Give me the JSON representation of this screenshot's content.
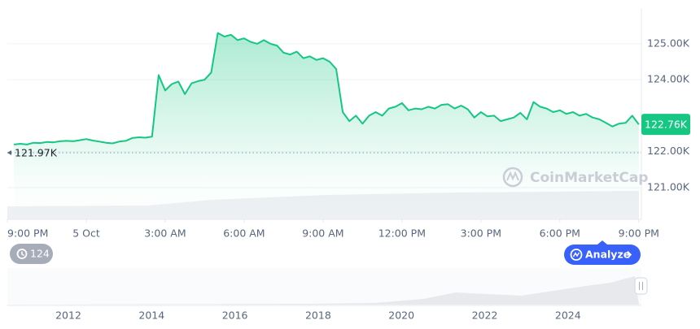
{
  "chart_data": {
    "type": "line",
    "x": [
      0.25,
      0.5,
      0.75,
      1,
      1.25,
      1.5,
      1.75,
      2,
      2.25,
      2.5,
      2.75,
      3,
      3.25,
      3.5,
      3.75,
      4,
      4.25,
      4.5,
      4.75,
      5,
      5.25,
      5.5,
      5.75,
      6,
      6.25,
      6.5,
      6.75,
      7,
      7.25,
      7.5,
      7.75,
      8,
      8.25,
      8.5,
      8.75,
      9,
      9.25,
      9.5,
      9.75,
      10,
      10.25,
      10.5,
      10.75,
      11,
      11.25,
      11.5,
      11.75,
      12,
      12.25,
      12.5,
      12.75,
      13,
      13.25,
      13.5,
      13.75,
      14,
      14.25,
      14.5,
      14.75,
      15,
      15.25,
      15.5,
      15.75,
      16,
      16.25,
      16.5,
      16.75,
      17,
      17.25,
      17.5,
      17.75,
      18,
      18.25,
      18.5,
      18.75,
      19,
      19.25,
      19.5,
      19.75,
      20,
      20.25,
      20.5,
      20.75,
      21,
      21.25,
      21.5,
      21.75,
      22,
      22.25,
      22.5,
      22.75,
      23,
      23.25,
      23.5,
      23.75,
      24
    ],
    "series": [
      {
        "color": "#16c784",
        "values": [
          122200,
          122220,
          122200,
          122250,
          122240,
          122270,
          122260,
          122290,
          122300,
          122290,
          122320,
          122350,
          122310,
          122280,
          122250,
          122230,
          122280,
          122300,
          122380,
          122400,
          122390,
          122420,
          124130,
          123700,
          123880,
          123950,
          123600,
          123900,
          123960,
          124000,
          124200,
          125300,
          125200,
          125250,
          125100,
          125150,
          125050,
          125000,
          125100,
          125000,
          124950,
          124750,
          124700,
          124780,
          124600,
          124650,
          124550,
          124600,
          124500,
          124300,
          123100,
          122850,
          123000,
          122780,
          123000,
          123100,
          123000,
          123200,
          123250,
          123350,
          123150,
          123200,
          123180,
          123250,
          123200,
          123300,
          123320,
          123200,
          123280,
          123180,
          122950,
          123100,
          122980,
          123000,
          122850,
          122900,
          122950,
          123080,
          122900,
          123380,
          123250,
          123200,
          123100,
          123150,
          123050,
          123100,
          123000,
          123050,
          122950,
          122900,
          122800,
          122700,
          122780,
          122800,
          123000,
          122760
        ]
      }
    ],
    "xlim": [
      0,
      24.1
    ],
    "xticks": [
      {
        "value": 0,
        "label": "9:00 PM"
      },
      {
        "value": 3,
        "label": "5 Oct"
      },
      {
        "value": 6,
        "label": "3:00 AM"
      },
      {
        "value": 9,
        "label": "6:00 AM"
      },
      {
        "value": 12,
        "label": "9:00 AM"
      },
      {
        "value": 15,
        "label": "12:00 PM"
      },
      {
        "value": 18,
        "label": "3:00 PM"
      },
      {
        "value": 21,
        "label": "6:00 PM"
      },
      {
        "value": 24,
        "label": "9:00 PM"
      }
    ],
    "ylim": [
      120120,
      125990
    ],
    "yticks": [
      {
        "value": 125000,
        "label": "125.00K"
      },
      {
        "value": 124000,
        "label": "124.00K"
      },
      {
        "value": 122000,
        "label": "122.00K"
      },
      {
        "value": 121000,
        "label": "121.00K"
      }
    ],
    "grid": true,
    "open_price": {
      "value": 121970,
      "label": "121.97K"
    },
    "current_price": {
      "value": 122760,
      "label": "122.76K"
    },
    "watermark": "CoinMarketCap",
    "history_count": 124,
    "analyze_button": "Analyze",
    "overview_labels": [
      2012,
      2014,
      2016,
      2018,
      2020,
      2022,
      2024
    ]
  }
}
